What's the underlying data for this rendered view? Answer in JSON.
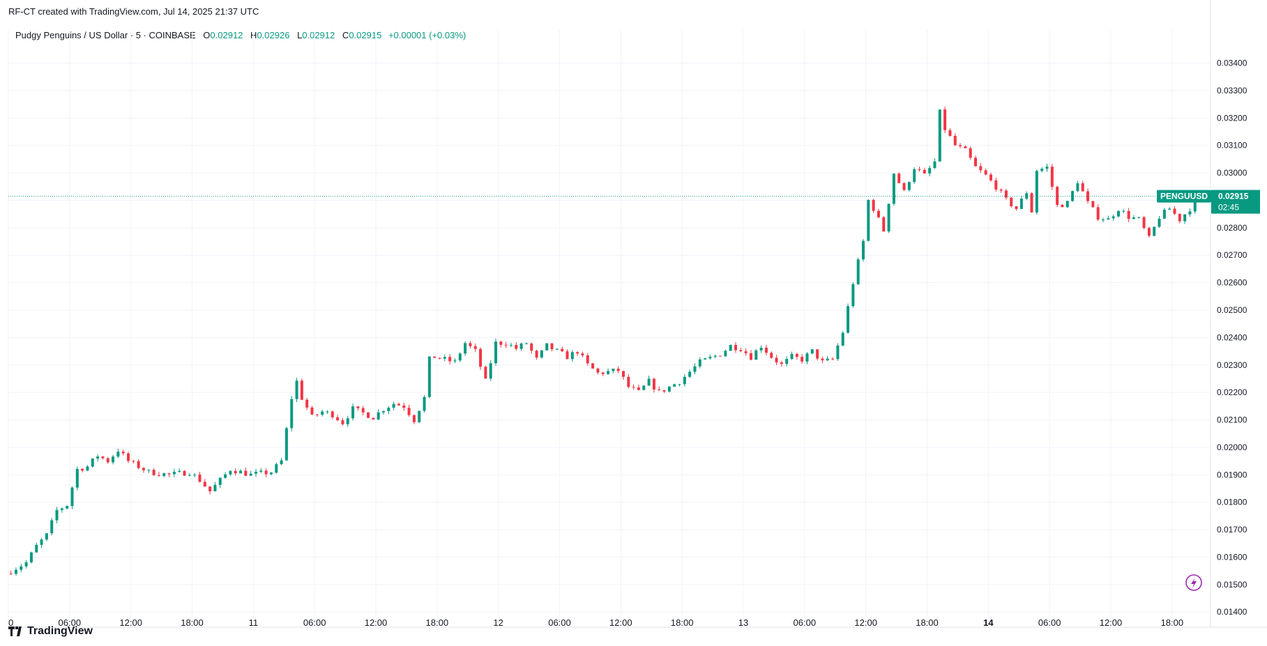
{
  "header": {
    "created_by": "RF-CT created with TradingView.com, Jul 14, 2025 21:37 UTC"
  },
  "legend": {
    "symbol": "Pudgy Penguins / US Dollar · 5 · COINBASE",
    "open_label": "O",
    "open": "0.02912",
    "high_label": "H",
    "high": "0.02926",
    "low_label": "L",
    "low": "0.02912",
    "close_label": "C",
    "close": "0.02915",
    "change": "+0.00001 (+0.03%)"
  },
  "price_tag": {
    "symbol": "PENGUUSD",
    "price": "0.02915",
    "countdown": "02:45"
  },
  "brand": {
    "name": "TradingView"
  },
  "colors": {
    "up": "#089981",
    "down": "#f23645",
    "grid": "#f0f3fa",
    "accent": "#9c27b0"
  },
  "chart_data": {
    "type": "candlestick",
    "ylim": [
      0.0137,
      0.0347
    ],
    "yticks": [
      "0.03400",
      "0.03300",
      "0.03200",
      "0.03100",
      "0.03000",
      "0.02900",
      "0.02800",
      "0.02700",
      "0.02600",
      "0.02500",
      "0.02400",
      "0.02300",
      "0.02200",
      "0.02100",
      "0.02000",
      "0.01900",
      "0.01800",
      "0.01700",
      "0.01600",
      "0.01500",
      "0.01400"
    ],
    "xticks": [
      {
        "t": 0,
        "label": "0",
        "bold": false
      },
      {
        "t": 6,
        "label": "06:00",
        "bold": false
      },
      {
        "t": 12,
        "label": "12:00",
        "bold": false
      },
      {
        "t": 18,
        "label": "18:00",
        "bold": false
      },
      {
        "t": 24,
        "label": "11",
        "bold": false
      },
      {
        "t": 30,
        "label": "06:00",
        "bold": false
      },
      {
        "t": 36,
        "label": "12:00",
        "bold": false
      },
      {
        "t": 42,
        "label": "18:00",
        "bold": false
      },
      {
        "t": 48,
        "label": "12",
        "bold": false
      },
      {
        "t": 54,
        "label": "06:00",
        "bold": false
      },
      {
        "t": 60,
        "label": "12:00",
        "bold": false
      },
      {
        "t": 66,
        "label": "18:00",
        "bold": false
      },
      {
        "t": 72,
        "label": "13",
        "bold": false
      },
      {
        "t": 78,
        "label": "06:00",
        "bold": false
      },
      {
        "t": 84,
        "label": "12:00",
        "bold": false
      },
      {
        "t": 90,
        "label": "18:00",
        "bold": false
      },
      {
        "t": 96,
        "label": "14",
        "bold": true
      },
      {
        "t": 102,
        "label": "06:00",
        "bold": false
      },
      {
        "t": 108,
        "label": "12:00",
        "bold": false
      },
      {
        "t": 114,
        "label": "18:00",
        "bold": false
      }
    ],
    "xrange_hours": [
      0,
      117.7
    ],
    "bar_interval_hours": 0.5,
    "last_price": 0.02915,
    "price_path": [
      [
        0,
        0.0154
      ],
      [
        1,
        0.0156
      ],
      [
        2,
        0.0158
      ],
      [
        3,
        0.0164
      ],
      [
        4,
        0.0168
      ],
      [
        5,
        0.0177
      ],
      [
        6,
        0.0179
      ],
      [
        7,
        0.0192
      ],
      [
        8,
        0.0193
      ],
      [
        9,
        0.0197
      ],
      [
        10,
        0.0195
      ],
      [
        11,
        0.0199
      ],
      [
        12,
        0.0195
      ],
      [
        14,
        0.0191
      ],
      [
        16,
        0.019
      ],
      [
        18,
        0.0191
      ],
      [
        19,
        0.0188
      ],
      [
        20,
        0.0184
      ],
      [
        21,
        0.0188
      ],
      [
        22,
        0.0192
      ],
      [
        24,
        0.019
      ],
      [
        26,
        0.0191
      ],
      [
        27,
        0.0195
      ],
      [
        28,
        0.0218
      ],
      [
        28.5,
        0.0224
      ],
      [
        29,
        0.0218
      ],
      [
        30,
        0.0211
      ],
      [
        31,
        0.0213
      ],
      [
        32,
        0.0212
      ],
      [
        33,
        0.0209
      ],
      [
        34,
        0.0214
      ],
      [
        36,
        0.0211
      ],
      [
        37,
        0.0214
      ],
      [
        38,
        0.0216
      ],
      [
        39,
        0.0215
      ],
      [
        40,
        0.021
      ],
      [
        41,
        0.0218
      ],
      [
        41.5,
        0.0232
      ],
      [
        42,
        0.0233
      ],
      [
        44,
        0.0231
      ],
      [
        45,
        0.0238
      ],
      [
        46,
        0.0235
      ],
      [
        47,
        0.0224
      ],
      [
        48,
        0.0238
      ],
      [
        49,
        0.0238
      ],
      [
        50,
        0.0236
      ],
      [
        51,
        0.0238
      ],
      [
        52,
        0.0232
      ],
      [
        53,
        0.0237
      ],
      [
        54,
        0.0235
      ],
      [
        55,
        0.0233
      ],
      [
        56,
        0.0235
      ],
      [
        57,
        0.023
      ],
      [
        58,
        0.0227
      ],
      [
        60,
        0.0228
      ],
      [
        61,
        0.0222
      ],
      [
        62,
        0.022
      ],
      [
        63,
        0.0224
      ],
      [
        64,
        0.022
      ],
      [
        65,
        0.0222
      ],
      [
        66,
        0.0224
      ],
      [
        68,
        0.0231
      ],
      [
        70,
        0.0234
      ],
      [
        71,
        0.0237
      ],
      [
        72,
        0.0236
      ],
      [
        73,
        0.0233
      ],
      [
        74,
        0.0237
      ],
      [
        75,
        0.0233
      ],
      [
        76,
        0.023
      ],
      [
        77,
        0.0233
      ],
      [
        78,
        0.0232
      ],
      [
        79,
        0.0235
      ],
      [
        80,
        0.0231
      ],
      [
        81,
        0.0232
      ],
      [
        82,
        0.0242
      ],
      [
        83,
        0.026
      ],
      [
        84,
        0.0275
      ],
      [
        84.5,
        0.029
      ],
      [
        85,
        0.0287
      ],
      [
        86,
        0.0279
      ],
      [
        87,
        0.03
      ],
      [
        88,
        0.0293
      ],
      [
        89,
        0.0302
      ],
      [
        90,
        0.0299
      ],
      [
        91,
        0.0304
      ],
      [
        91.5,
        0.0322
      ],
      [
        92,
        0.0316
      ],
      [
        93,
        0.031
      ],
      [
        94,
        0.0308
      ],
      [
        95,
        0.0302
      ],
      [
        96,
        0.0299
      ],
      [
        97,
        0.0295
      ],
      [
        98,
        0.029
      ],
      [
        99,
        0.0287
      ],
      [
        100,
        0.0293
      ],
      [
        100.5,
        0.0286
      ],
      [
        101,
        0.0301
      ],
      [
        102,
        0.0302
      ],
      [
        103,
        0.0288
      ],
      [
        104,
        0.0289
      ],
      [
        105,
        0.0297
      ],
      [
        106,
        0.0289
      ],
      [
        107,
        0.0284
      ],
      [
        108,
        0.0283
      ],
      [
        109,
        0.0287
      ],
      [
        110,
        0.0284
      ],
      [
        111,
        0.0283
      ],
      [
        112,
        0.0276
      ],
      [
        113,
        0.0284
      ],
      [
        114,
        0.0287
      ],
      [
        115,
        0.0283
      ],
      [
        116,
        0.0287
      ],
      [
        117,
        0.02915
      ]
    ]
  }
}
